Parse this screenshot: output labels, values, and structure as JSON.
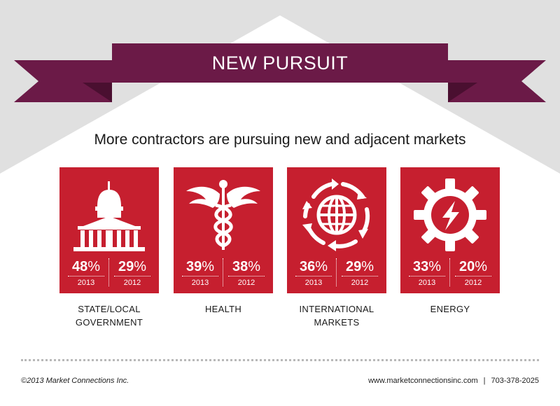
{
  "banner": {
    "title": "NEW PURSUIT"
  },
  "subtitle": "More contractors are pursuing new and adjacent markets",
  "colors": {
    "banner": "#6b1a47",
    "banner_dark": "#4a0f30",
    "card": "#c61f2f",
    "background_gray": "#e0e0e0"
  },
  "cards": [
    {
      "icon": "capitol-building-icon",
      "label_line1": "STATE/LOCAL",
      "label_line2": "GOVERNMENT",
      "stat1": {
        "value": "48",
        "unit": "%",
        "year": "2013"
      },
      "stat2": {
        "value": "29",
        "unit": "%",
        "year": "2012"
      }
    },
    {
      "icon": "caduceus-icon",
      "label_line1": "HEALTH",
      "label_line2": "",
      "stat1": {
        "value": "39",
        "unit": "%",
        "year": "2013"
      },
      "stat2": {
        "value": "38",
        "unit": "%",
        "year": "2012"
      }
    },
    {
      "icon": "globe-arrows-icon",
      "label_line1": "INTERNATIONAL",
      "label_line2": "MARKETS",
      "stat1": {
        "value": "36",
        "unit": "%",
        "year": "2013"
      },
      "stat2": {
        "value": "29",
        "unit": "%",
        "year": "2012"
      }
    },
    {
      "icon": "gear-lightning-icon",
      "label_line1": "ENERGY",
      "label_line2": "",
      "stat1": {
        "value": "33",
        "unit": "%",
        "year": "2013"
      },
      "stat2": {
        "value": "20",
        "unit": "%",
        "year": "2012"
      }
    }
  ],
  "footer": {
    "copyright": "©2013 Market Connections Inc.",
    "website": "www.marketconnectionsinc.com",
    "separator": "|",
    "phone": "703-378-2025"
  }
}
